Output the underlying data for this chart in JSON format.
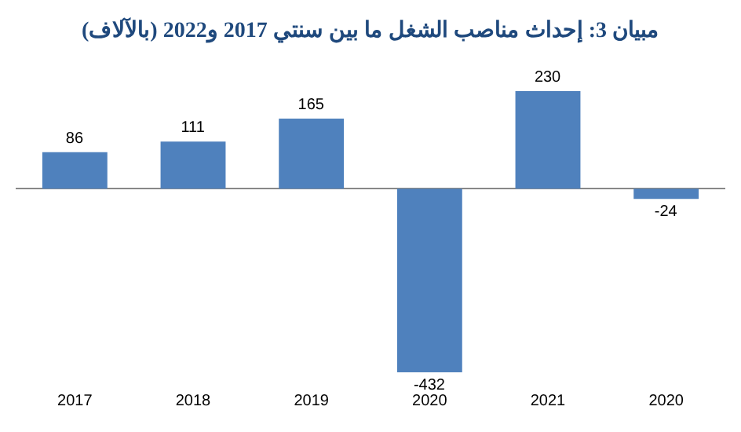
{
  "chart_data": {
    "type": "bar",
    "title": "مبيان 3: إحداث مناصب الشغل ما بين سنتي 2017 و2022 (بالآلاف)",
    "categories": [
      "2017",
      "2018",
      "2019",
      "2020",
      "2021",
      "2020"
    ],
    "values": [
      86,
      111,
      165,
      -432,
      230,
      -24
    ],
    "color": "#4f81bd",
    "data_labels": true,
    "grid": false,
    "legend": false
  }
}
